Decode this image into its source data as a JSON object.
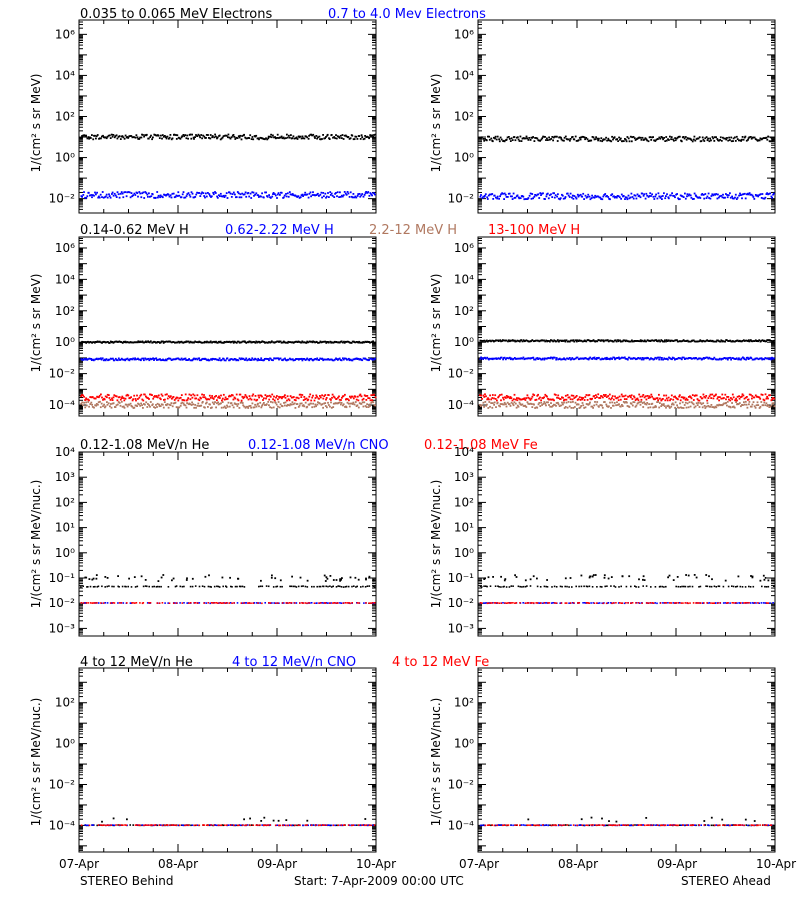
{
  "footer": {
    "left": "STEREO Behind",
    "center": "Start:  7-Apr-2009 00:00 UTC",
    "right": "STEREO Ahead"
  },
  "x_ticks": [
    "07-Apr",
    "08-Apr",
    "09-Apr",
    "10-Apr"
  ],
  "colors": {
    "black": "#000000",
    "blue": "#0000ff",
    "tan": "#b07860",
    "red": "#ff0000"
  },
  "rows": [
    {
      "ylabel": "1/(cm² s sr MeV)",
      "legend": [
        {
          "text": "0.035 to 0.065 MeV Electrons",
          "color": "black"
        },
        {
          "text": "0.7 to 4.0 Mev Electrons",
          "color": "blue"
        }
      ]
    },
    {
      "ylabel": "1/(cm² s sr MeV)",
      "legend": [
        {
          "text": "0.14-0.62 MeV H",
          "color": "black"
        },
        {
          "text": "0.62-2.22 MeV H",
          "color": "blue"
        },
        {
          "text": "2.2-12 MeV H",
          "color": "tan"
        },
        {
          "text": "13-100 MeV H",
          "color": "red"
        }
      ]
    },
    {
      "ylabel": "1/(cm² s sr MeV/nuc.)",
      "legend": [
        {
          "text": "0.12-1.08 MeV/n He",
          "color": "black"
        },
        {
          "text": "0.12-1.08 MeV/n CNO",
          "color": "blue"
        },
        {
          "text": "0.12-1.08 MeV Fe",
          "color": "red"
        }
      ]
    },
    {
      "ylabel": "1/(cm² s sr MeV/nuc.)",
      "legend": [
        {
          "text": "4 to 12 MeV/n He",
          "color": "black"
        },
        {
          "text": "4 to 12 MeV/n CNO",
          "color": "blue"
        },
        {
          "text": "4 to 12 MeV Fe",
          "color": "red"
        }
      ]
    }
  ],
  "chart_data": [
    {
      "type": "scatter",
      "panel": "STEREO Behind",
      "row": 0,
      "yscale": "log",
      "ylim": [
        0.002,
        5000000
      ],
      "yticks_exp": [
        -2,
        0,
        2,
        4,
        6
      ],
      "xlim": [
        "07-Apr",
        "10-Apr"
      ],
      "series": [
        {
          "name": "0.035 to 0.065 MeV Electrons",
          "color": "black",
          "level": 10,
          "spread": 0.12
        },
        {
          "name": "0.7 to 4.0 Mev Electrons",
          "color": "blue",
          "level": 0.015,
          "spread": 0.15
        }
      ]
    },
    {
      "type": "scatter",
      "panel": "STEREO Ahead",
      "row": 0,
      "yscale": "log",
      "ylim": [
        0.002,
        5000000
      ],
      "yticks_exp": [
        -2,
        0,
        2,
        4,
        6
      ],
      "xlim": [
        "07-Apr",
        "10-Apr"
      ],
      "series": [
        {
          "name": "0.035 to 0.065 MeV Electrons",
          "color": "black",
          "level": 8,
          "spread": 0.12
        },
        {
          "name": "0.7 to 4.0 Mev Electrons",
          "color": "blue",
          "level": 0.013,
          "spread": 0.15
        }
      ]
    },
    {
      "type": "scatter",
      "panel": "STEREO Behind",
      "row": 1,
      "yscale": "log",
      "ylim": [
        2e-05,
        5000000
      ],
      "yticks_exp": [
        -4,
        -2,
        0,
        2,
        4,
        6
      ],
      "xlim": [
        "07-Apr",
        "10-Apr"
      ],
      "series": [
        {
          "name": "0.14-0.62 MeV H",
          "color": "black",
          "level": 1.0,
          "spread": 0.05
        },
        {
          "name": "0.62-2.22 MeV H",
          "color": "blue",
          "level": 0.08,
          "spread": 0.07
        },
        {
          "name": "2.2-12 MeV H",
          "color": "tan",
          "level": 0.0001,
          "spread": 0.2
        },
        {
          "name": "13-100 MeV H",
          "color": "red",
          "level": 0.0003,
          "spread": 0.2
        }
      ]
    },
    {
      "type": "scatter",
      "panel": "STEREO Ahead",
      "row": 1,
      "yscale": "log",
      "ylim": [
        2e-05,
        5000000
      ],
      "yticks_exp": [
        -4,
        -2,
        0,
        2,
        4,
        6
      ],
      "xlim": [
        "07-Apr",
        "10-Apr"
      ],
      "series": [
        {
          "name": "0.14-0.62 MeV H",
          "color": "black",
          "level": 1.2,
          "spread": 0.05
        },
        {
          "name": "0.62-2.22 MeV H",
          "color": "blue",
          "level": 0.09,
          "spread": 0.07
        },
        {
          "name": "2.2-12 MeV H",
          "color": "tan",
          "level": 0.0001,
          "spread": 0.2
        },
        {
          "name": "13-100 MeV H",
          "color": "red",
          "level": 0.0003,
          "spread": 0.2
        }
      ]
    },
    {
      "type": "scatter",
      "panel": "STEREO Behind",
      "row": 2,
      "yscale": "log",
      "ylim": [
        0.0005,
        10000
      ],
      "yticks_exp": [
        -3,
        -2,
        -1,
        0,
        1,
        2,
        3,
        4
      ],
      "xlim": [
        "07-Apr",
        "10-Apr"
      ],
      "series": [
        {
          "name": "0.12-1.08 MeV/n He",
          "color": "black",
          "level": 0.045,
          "spread": 0.02
        },
        {
          "name": "0.12-1.08 MeV/n CNO",
          "color": "blue",
          "level": 0.01,
          "spread": 0.01
        },
        {
          "name": "0.12-1.08 MeV Fe",
          "color": "red",
          "level": 0.01,
          "spread": 0.01
        }
      ]
    },
    {
      "type": "scatter",
      "panel": "STEREO Ahead",
      "row": 2,
      "yscale": "log",
      "ylim": [
        0.0005,
        10000
      ],
      "yticks_exp": [
        -3,
        -2,
        -1,
        0,
        1,
        2,
        3,
        4
      ],
      "xlim": [
        "07-Apr",
        "10-Apr"
      ],
      "series": [
        {
          "name": "0.12-1.08 MeV/n He",
          "color": "black",
          "level": 0.045,
          "spread": 0.02
        },
        {
          "name": "0.12-1.08 MeV/n CNO",
          "color": "blue",
          "level": 0.01,
          "spread": 0.01
        },
        {
          "name": "0.12-1.08 MeV Fe",
          "color": "red",
          "level": 0.01,
          "spread": 0.01
        }
      ]
    },
    {
      "type": "scatter",
      "panel": "STEREO Behind",
      "row": 3,
      "yscale": "log",
      "ylim": [
        5e-06,
        5000
      ],
      "yticks_exp": [
        -4,
        -2,
        0,
        2
      ],
      "xlim": [
        "07-Apr",
        "10-Apr"
      ],
      "series": [
        {
          "name": "4 to 12 MeV/n He",
          "color": "black",
          "level": 0.0001,
          "spread": 0.01
        },
        {
          "name": "4 to 12 MeV/n CNO",
          "color": "blue",
          "level": 0.0001,
          "spread": 0.01
        },
        {
          "name": "4 to 12 MeV Fe",
          "color": "red",
          "level": 0.0001,
          "spread": 0.01
        }
      ]
    },
    {
      "type": "scatter",
      "panel": "STEREO Ahead",
      "row": 3,
      "yscale": "log",
      "ylim": [
        5e-06,
        5000
      ],
      "yticks_exp": [
        -4,
        -2,
        0,
        2
      ],
      "xlim": [
        "07-Apr",
        "10-Apr"
      ],
      "series": [
        {
          "name": "4 to 12 MeV/n He",
          "color": "black",
          "level": 0.0001,
          "spread": 0.01
        },
        {
          "name": "4 to 12 MeV/n CNO",
          "color": "blue",
          "level": 0.0001,
          "spread": 0.01
        },
        {
          "name": "4 to 12 MeV Fe",
          "color": "red",
          "level": 0.0001,
          "spread": 0.01
        }
      ]
    }
  ]
}
